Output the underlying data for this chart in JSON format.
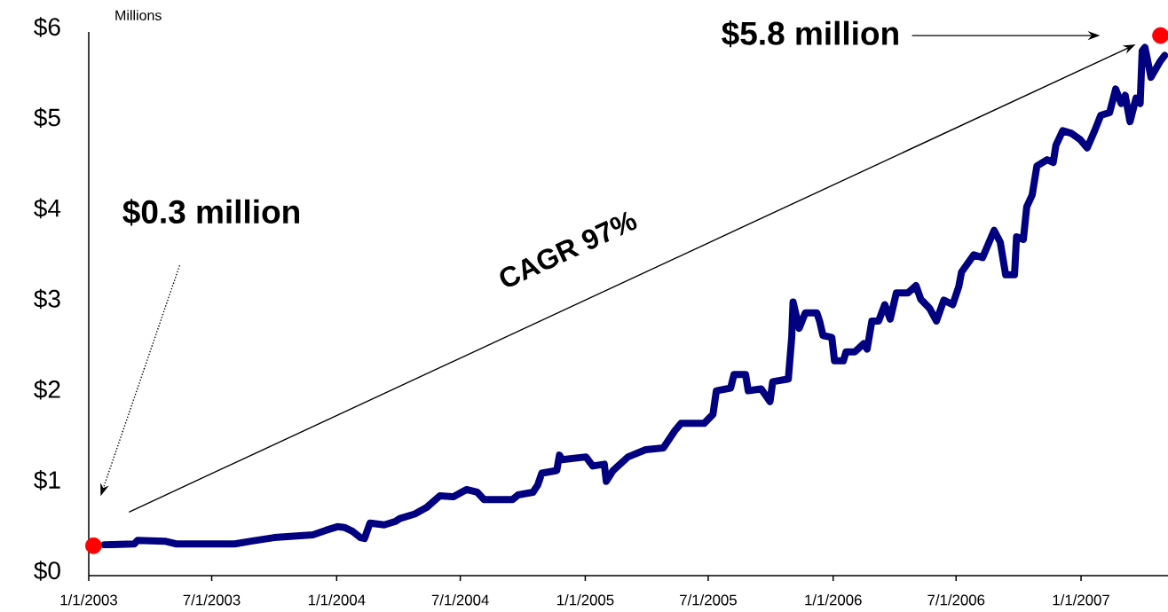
{
  "chart_data": {
    "type": "line",
    "ylabel": "Millions",
    "xlim": [
      "2003-01-01",
      "2007-05-09"
    ],
    "xticks": [
      {
        "value": "2003-01-01",
        "label": "1/1/2003"
      },
      {
        "value": "2003-07-01",
        "label": "7/1/2003"
      },
      {
        "value": "2004-01-01",
        "label": "1/1/2004"
      },
      {
        "value": "2004-07-01",
        "label": "7/1/2004"
      },
      {
        "value": "2005-01-01",
        "label": "1/1/2005"
      },
      {
        "value": "2005-07-01",
        "label": "7/1/2005"
      },
      {
        "value": "2006-01-01",
        "label": "1/1/2006"
      },
      {
        "value": "2006-07-01",
        "label": "7/1/2006"
      },
      {
        "value": "2007-01-01",
        "label": "1/1/2007"
      }
    ],
    "ylim": [
      0,
      6
    ],
    "yticks": [
      {
        "value": 0,
        "label": "$0"
      },
      {
        "value": 1,
        "label": "$1"
      },
      {
        "value": 2,
        "label": "$2"
      },
      {
        "value": 3,
        "label": "$3"
      },
      {
        "value": 4,
        "label": "$4"
      },
      {
        "value": 5,
        "label": "$5"
      },
      {
        "value": 6,
        "label": "$6"
      }
    ],
    "series": [
      {
        "color": "#000080",
        "x": [
          "2003-01-24",
          "2003-03-09",
          "2003-03-14",
          "2003-04-23",
          "2003-05-10",
          "2003-08-04",
          "2003-08-28",
          "2003-10-01",
          "2003-11-27",
          "2003-12-16",
          "2004-01-02",
          "2004-01-13",
          "2004-01-24",
          "2004-02-05",
          "2004-02-11",
          "2004-02-19",
          "2004-03-11",
          "2004-03-28",
          "2004-04-03",
          "2004-04-25",
          "2004-05-12",
          "2004-06-01",
          "2004-06-21",
          "2004-07-10",
          "2004-07-26",
          "2004-08-05",
          "2004-09-16",
          "2004-09-24",
          "2004-10-16",
          "2004-10-23",
          "2004-10-29",
          "2004-11-20",
          "2004-11-24",
          "2004-11-28",
          "2005-01-02",
          "2005-01-12",
          "2005-01-29",
          "2005-02-01",
          "2005-02-11",
          "2005-03-05",
          "2005-03-31",
          "2005-04-26",
          "2005-05-13",
          "2005-05-22",
          "2005-06-25",
          "2005-07-08",
          "2005-07-13",
          "2005-08-03",
          "2005-08-08",
          "2005-08-25",
          "2005-08-29",
          "2005-09-17",
          "2005-09-30",
          "2005-10-04",
          "2005-10-27",
          "2005-11-01",
          "2005-11-03",
          "2005-11-12",
          "2005-11-21",
          "2005-12-08",
          "2005-12-12",
          "2005-12-17",
          "2005-12-30",
          "2006-01-03",
          "2006-01-16",
          "2006-01-20",
          "2006-02-02",
          "2006-02-15",
          "2006-02-20",
          "2006-02-27",
          "2006-03-09",
          "2006-03-18",
          "2006-03-26",
          "2006-04-04",
          "2006-04-21",
          "2006-05-03",
          "2006-05-10",
          "2006-05-23",
          "2006-06-02",
          "2006-06-13",
          "2006-06-26",
          "2006-07-05",
          "2006-07-09",
          "2006-07-27",
          "2006-08-09",
          "2006-08-26",
          "2006-09-04",
          "2006-09-12",
          "2006-09-25",
          "2006-09-28",
          "2006-10-08",
          "2006-10-13",
          "2006-10-21",
          "2006-10-28",
          "2006-11-12",
          "2006-11-21",
          "2006-11-25",
          "2006-12-05",
          "2006-12-18",
          "2006-12-31",
          "2007-01-10",
          "2007-01-21",
          "2007-01-30",
          "2007-02-12",
          "2007-02-21",
          "2007-03-01",
          "2007-03-07",
          "2007-03-14",
          "2007-03-23",
          "2007-03-29",
          "2007-04-01",
          "2007-04-05",
          "2007-04-14",
          "2007-04-27",
          "2007-05-04"
        ],
        "values": [
          0.34,
          0.35,
          0.39,
          0.38,
          0.35,
          0.35,
          0.38,
          0.42,
          0.45,
          0.5,
          0.54,
          0.53,
          0.49,
          0.42,
          0.41,
          0.58,
          0.56,
          0.6,
          0.63,
          0.68,
          0.75,
          0.88,
          0.87,
          0.95,
          0.92,
          0.84,
          0.84,
          0.89,
          0.92,
          1.0,
          1.13,
          1.16,
          1.33,
          1.28,
          1.31,
          1.21,
          1.23,
          1.04,
          1.16,
          1.31,
          1.39,
          1.41,
          1.6,
          1.68,
          1.68,
          1.78,
          2.04,
          2.07,
          2.22,
          2.22,
          2.04,
          2.06,
          1.92,
          2.14,
          2.17,
          2.63,
          3.02,
          2.73,
          2.9,
          2.9,
          2.81,
          2.65,
          2.63,
          2.37,
          2.37,
          2.47,
          2.47,
          2.56,
          2.5,
          2.81,
          2.81,
          2.99,
          2.83,
          3.12,
          3.12,
          3.2,
          3.05,
          2.95,
          2.81,
          3.04,
          2.99,
          3.19,
          3.35,
          3.54,
          3.51,
          3.81,
          3.68,
          3.32,
          3.32,
          3.74,
          3.71,
          4.07,
          4.2,
          4.52,
          4.59,
          4.56,
          4.75,
          4.91,
          4.88,
          4.81,
          4.72,
          4.91,
          5.08,
          5.11,
          5.37,
          5.21,
          5.3,
          5.01,
          5.27,
          5.21,
          5.79,
          5.83,
          5.5,
          5.67,
          5.74
        ]
      },
      {
        "type": "scatter",
        "marker": "circle",
        "color": "#ff0000",
        "x": [
          "2003-01-08",
          "2007-04-28"
        ],
        "values": [
          0.33,
          5.96
        ]
      }
    ],
    "annotations": [
      "$0.3 million",
      "CAGR 97%",
      "$5.8 million"
    ]
  }
}
